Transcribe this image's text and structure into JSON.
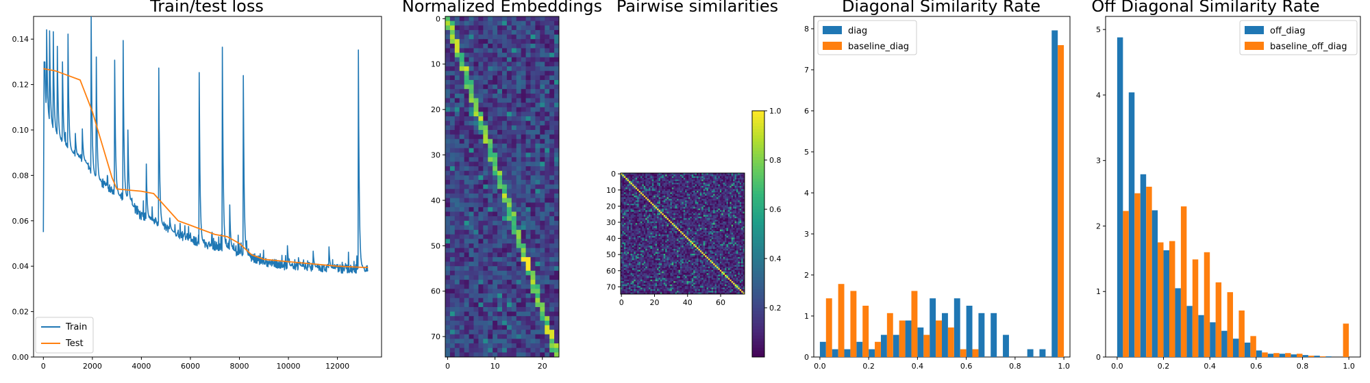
{
  "chart_data": [
    {
      "type": "line",
      "title": "Train/test loss",
      "xlim": [
        -400,
        13800
      ],
      "ylim": [
        0,
        0.15
      ],
      "xticks": [
        "0",
        "2000",
        "4000",
        "6000",
        "8000",
        "10000",
        "12000"
      ],
      "yticks": [
        "0.00",
        "0.02",
        "0.04",
        "0.06",
        "0.08",
        "0.10",
        "0.12",
        "0.14"
      ],
      "legend_position": "lower-left",
      "series": [
        {
          "name": "Train",
          "color": "#1f77b4",
          "x": [
            0,
            30,
            100,
            200,
            400,
            600,
            800,
            1000,
            1300,
            1600,
            1800,
            2000,
            2200,
            2500,
            2800,
            3100,
            3400,
            3700,
            3900,
            4200,
            4500,
            5000,
            5500,
            6000,
            6500,
            7000,
            7500,
            8000,
            8500,
            9000,
            9500,
            10000,
            10500,
            11000,
            11500,
            12000,
            12500,
            13000,
            13250
          ],
          "y": [
            0.055,
            0.13,
            0.11,
            0.104,
            0.1,
            0.097,
            0.094,
            0.092,
            0.089,
            0.087,
            0.085,
            0.081,
            0.078,
            0.076,
            0.074,
            0.071,
            0.07,
            0.066,
            0.063,
            0.061,
            0.06,
            0.057,
            0.054,
            0.052,
            0.05,
            0.049,
            0.048,
            0.046,
            0.044,
            0.042,
            0.041,
            0.04,
            0.04,
            0.0395,
            0.039,
            0.039,
            0.0388,
            0.039,
            0.039
          ],
          "spikes_x": [
            30,
            130,
            250,
            400,
            560,
            780,
            1000,
            1300,
            1580,
            1950,
            2150,
            2900,
            3250,
            3450,
            4200,
            4700,
            5150,
            6350,
            7300,
            7600,
            8150,
            9950,
            10400,
            11000,
            11650,
            12850
          ],
          "spikes_y": [
            0.15,
            0.15,
            0.15,
            0.15,
            0.15,
            0.13,
            0.15,
            0.1,
            0.105,
            0.15,
            0.15,
            0.15,
            0.15,
            0.1,
            0.085,
            0.15,
            0.063,
            0.15,
            0.15,
            0.07,
            0.15,
            0.052,
            0.045,
            0.049,
            0.05,
            0.15
          ]
        },
        {
          "name": "Test",
          "color": "#ff7f0e",
          "x": [
            0,
            500,
            1000,
            1500,
            2000,
            2500,
            2800,
            3000,
            3500,
            4000,
            4500,
            5000,
            5500,
            6000,
            6500,
            7000,
            7500,
            8000,
            8500,
            9000,
            10000,
            11000,
            12000,
            13000,
            13250
          ],
          "y": [
            0.127,
            0.126,
            0.124,
            0.122,
            0.108,
            0.09,
            0.079,
            0.074,
            0.0735,
            0.073,
            0.072,
            0.066,
            0.06,
            0.058,
            0.056,
            0.054,
            0.053,
            0.05,
            0.045,
            0.043,
            0.042,
            0.041,
            0.04,
            0.0395,
            0.0395
          ]
        }
      ]
    },
    {
      "type": "heatmap",
      "title": "Normalized Embeddings",
      "rows": 75,
      "cols": 24,
      "xticks": [
        "0",
        "10",
        "20"
      ],
      "yticks": [
        "0",
        "10",
        "20",
        "30",
        "40",
        "50",
        "60",
        "70"
      ],
      "colormap": "viridis",
      "pattern": "bright diagonal band from (row 0, col 0) to (row 74, col 23) over a noisy dark background"
    },
    {
      "type": "heatmap",
      "title": "Pairwise similarities",
      "rows": 75,
      "cols": 75,
      "xticks": [
        "0",
        "20",
        "40",
        "60"
      ],
      "yticks": [
        "0",
        "10",
        "20",
        "30",
        "40",
        "50",
        "60",
        "70"
      ],
      "colormap": "viridis",
      "colorbar_ticks": [
        "0.2",
        "0.4",
        "0.6",
        "0.8",
        "1.0"
      ],
      "colorbar_range": [
        0,
        1
      ],
      "pattern": "main diagonal = 1.0, off-diagonal mostly 0.0-0.4"
    },
    {
      "type": "bar",
      "title": "Diagonal Similarity Rate",
      "xlim": [
        -0.025,
        1.025
      ],
      "ylim": [
        0,
        8.3
      ],
      "xticks": [
        "0.0",
        "0.2",
        "0.4",
        "0.6",
        "0.8",
        "1.0"
      ],
      "yticks": [
        "0",
        "1",
        "2",
        "3",
        "4",
        "5",
        "6",
        "7",
        "8"
      ],
      "legend_position": "upper-left",
      "bin_centers": [
        0.025,
        0.075,
        0.125,
        0.175,
        0.225,
        0.275,
        0.325,
        0.375,
        0.425,
        0.475,
        0.525,
        0.575,
        0.625,
        0.675,
        0.725,
        0.775,
        0.825,
        0.875,
        0.925,
        0.975
      ],
      "bin_width": 0.05,
      "series": [
        {
          "name": "diag",
          "color": "#1f77b4",
          "values": [
            0.37,
            0.19,
            0.19,
            0.37,
            0.19,
            0.54,
            0.54,
            0.89,
            0.72,
            1.43,
            1.07,
            1.43,
            1.25,
            1.07,
            1.07,
            0.54,
            0,
            0.19,
            0.19,
            7.96
          ]
        },
        {
          "name": "baseline_diag",
          "color": "#ff7f0e",
          "values": [
            1.43,
            1.78,
            1.61,
            1.25,
            0.37,
            1.07,
            0.89,
            1.61,
            0.54,
            0.89,
            0.72,
            0.19,
            0.19,
            0,
            0,
            0,
            0,
            0,
            0,
            7.6
          ]
        }
      ]
    },
    {
      "type": "bar",
      "title": "Off Diagonal Similarity Rate",
      "xlim": [
        -0.05,
        1.05
      ],
      "ylim": [
        0,
        5.2
      ],
      "xticks": [
        "0.0",
        "0.2",
        "0.4",
        "0.6",
        "0.8",
        "1.0"
      ],
      "yticks": [
        "0",
        "1",
        "2",
        "3",
        "4",
        "5"
      ],
      "legend_position": "upper-right",
      "bin_centers": [
        0.025,
        0.075,
        0.125,
        0.175,
        0.225,
        0.275,
        0.325,
        0.375,
        0.425,
        0.475,
        0.525,
        0.575,
        0.625,
        0.675,
        0.725,
        0.775,
        0.825,
        0.875,
        0.925,
        0.975
      ],
      "bin_width": 0.05,
      "series": [
        {
          "name": "off_diag",
          "color": "#1f77b4",
          "values": [
            4.88,
            4.04,
            2.79,
            2.24,
            1.63,
            1.05,
            0.78,
            0.64,
            0.53,
            0.4,
            0.28,
            0.22,
            0.1,
            0.05,
            0.05,
            0.04,
            0.03,
            0.02,
            0.01,
            0
          ]
        },
        {
          "name": "baseline_off_diag",
          "color": "#ff7f0e",
          "values": [
            2.23,
            2.5,
            2.6,
            1.75,
            1.77,
            2.3,
            1.49,
            1.6,
            1.14,
            0.99,
            0.71,
            0.32,
            0.07,
            0.06,
            0.06,
            0.05,
            0.02,
            0.01,
            0,
            0.51
          ]
        }
      ]
    }
  ]
}
